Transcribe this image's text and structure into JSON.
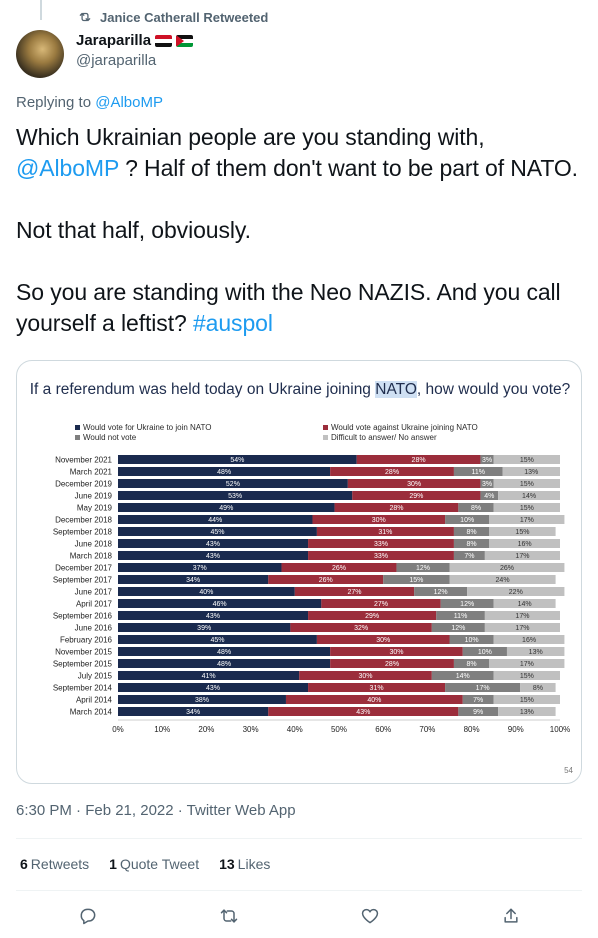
{
  "retweet_header": {
    "text": "Janice Catherall Retweeted",
    "icon": "retweet-icon"
  },
  "author": {
    "display_name": "Jaraparilla",
    "handle": "@jaraparilla",
    "flags": [
      "egypt-flag",
      "palestine-flag"
    ]
  },
  "replying_to": {
    "prefix": "Replying to ",
    "mention": "@AlboMP"
  },
  "tweet": {
    "line1_before": "Which Ukrainian people are you standing with,",
    "line1_mention": "@AlboMP",
    "line1_after": " ? Half of them don't want to be part of NATO.",
    "para2": "Not that half, obviously.",
    "para3_text": "So you are standing with the Neo NAZIS. And you call yourself a leftist? ",
    "para3_hashtag": "#auspol"
  },
  "chart_data": {
    "type": "bar",
    "stacked": "horizontal-100",
    "title_before": "If a referendum was held today on Ukraine joining ",
    "title_highlight": "NATO",
    "title_after": ", how would you vote?",
    "legend": [
      {
        "label": "Would vote for Ukraine to join NATO",
        "color": "#1a2a4e"
      },
      {
        "label": "Would vote against Ukraine joining NATO",
        "color": "#9b2d3b"
      },
      {
        "label": "Would not vote",
        "color": "#7f7f7f"
      },
      {
        "label": "Difficult to answer/ No answer",
        "color": "#c0c0c0"
      }
    ],
    "categories": [
      "November 2021",
      "March 2021",
      "December 2019",
      "June 2019",
      "May 2019",
      "December 2018",
      "September 2018",
      "June 2018",
      "March 2018",
      "December 2017",
      "September 2017",
      "June 2017",
      "April 2017",
      "September 2016",
      "June 2016",
      "February 2016",
      "November 2015",
      "September 2015",
      "July 2015",
      "September 2014",
      "April 2014",
      "March 2014"
    ],
    "series": [
      {
        "name": "Would vote for Ukraine to join NATO",
        "values": [
          54,
          48,
          52,
          53,
          49,
          44,
          45,
          43,
          43,
          37,
          34,
          40,
          46,
          43,
          39,
          45,
          48,
          48,
          41,
          43,
          38,
          34
        ]
      },
      {
        "name": "Would vote against Ukraine joining NATO",
        "values": [
          28,
          28,
          30,
          29,
          28,
          30,
          31,
          33,
          33,
          26,
          26,
          27,
          27,
          29,
          32,
          30,
          30,
          28,
          30,
          31,
          40,
          43
        ]
      },
      {
        "name": "Would not vote",
        "values": [
          3,
          11,
          3,
          4,
          8,
          10,
          8,
          8,
          7,
          12,
          15,
          12,
          12,
          11,
          12,
          10,
          10,
          8,
          14,
          17,
          7,
          9
        ]
      },
      {
        "name": "Difficult to answer/ No answer",
        "values": [
          15,
          13,
          15,
          14,
          15,
          17,
          15,
          16,
          17,
          26,
          24,
          22,
          14,
          17,
          17,
          16,
          13,
          17,
          15,
          8,
          15,
          13
        ]
      }
    ],
    "x_ticks": [
      "0%",
      "10%",
      "20%",
      "30%",
      "40%",
      "50%",
      "60%",
      "70%",
      "80%",
      "90%",
      "100%"
    ],
    "xlim": [
      0,
      100
    ],
    "page_number": "54"
  },
  "meta": {
    "timestamp": "6:30 PM · Feb 21, 2022 · Twitter Web App"
  },
  "stats": {
    "retweets_count": "6",
    "retweets_label": "Retweets",
    "quotes_count": "1",
    "quotes_label": "Quote Tweet",
    "likes_count": "13",
    "likes_label": "Likes"
  },
  "actions": [
    "reply-icon",
    "retweet-icon",
    "like-icon",
    "share-icon"
  ]
}
